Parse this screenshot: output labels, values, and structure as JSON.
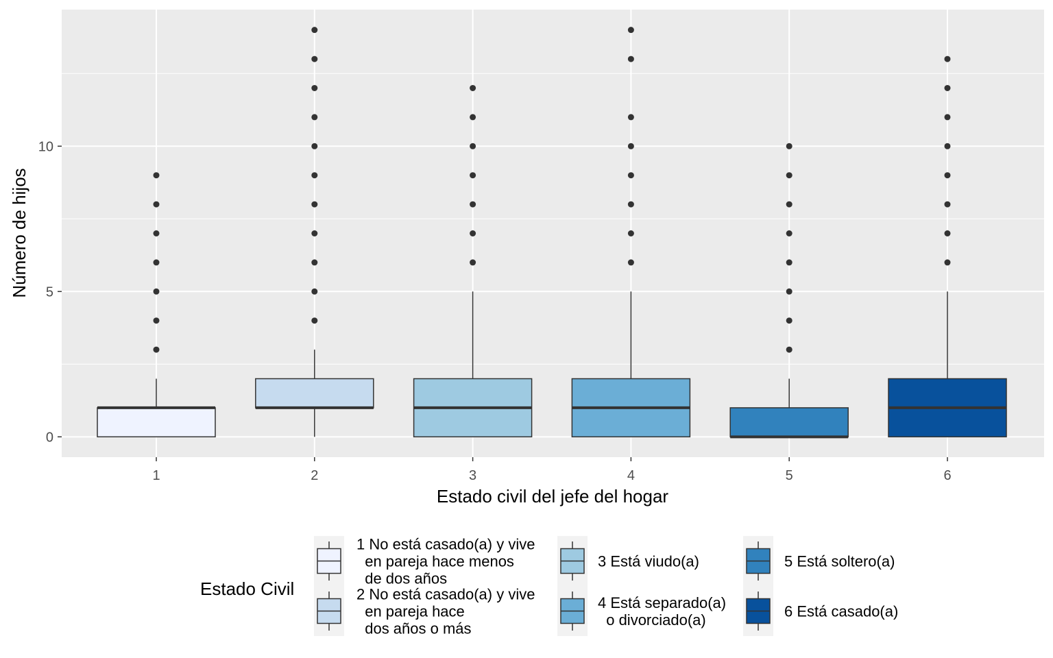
{
  "chart_data": {
    "type": "boxplot",
    "title": "",
    "xlabel": "Estado civil del jefe del hogar",
    "ylabel": "Número de hijos",
    "ylim": [
      -0.7,
      14.7
    ],
    "yticks": [
      0,
      5,
      10
    ],
    "grid": true,
    "legend_position": "bottom",
    "categories": [
      "1",
      "2",
      "3",
      "4",
      "5",
      "6"
    ],
    "boxes": [
      {
        "category": "1",
        "q1": 0,
        "median": 1,
        "q3": 1,
        "whisker_low": 0,
        "whisker_high": 2,
        "outliers": [
          3,
          4,
          5,
          6,
          7,
          8,
          9
        ],
        "color": "#EFF3FF"
      },
      {
        "category": "2",
        "q1": 1,
        "median": 1,
        "q3": 2,
        "whisker_low": 0,
        "whisker_high": 3,
        "outliers": [
          4,
          5,
          6,
          7,
          8,
          9,
          10,
          11,
          12,
          13,
          14
        ],
        "color": "#C6DBEF"
      },
      {
        "category": "3",
        "q1": 0,
        "median": 1,
        "q3": 2,
        "whisker_low": 0,
        "whisker_high": 5,
        "outliers": [
          6,
          7,
          8,
          9,
          10,
          11,
          12
        ],
        "color": "#9ECAE1"
      },
      {
        "category": "4",
        "q1": 0,
        "median": 1,
        "q3": 2,
        "whisker_low": 0,
        "whisker_high": 5,
        "outliers": [
          6,
          7,
          8,
          9,
          10,
          11,
          13,
          14
        ],
        "color": "#6BAED6"
      },
      {
        "category": "5",
        "q1": 0,
        "median": 0,
        "q3": 1,
        "whisker_low": 0,
        "whisker_high": 2,
        "outliers": [
          3,
          4,
          5,
          6,
          7,
          8,
          9,
          10
        ],
        "color": "#3182BD"
      },
      {
        "category": "6",
        "q1": 0,
        "median": 1,
        "q3": 2,
        "whisker_low": 0,
        "whisker_high": 5,
        "outliers": [
          6,
          7,
          8,
          9,
          10,
          11,
          12,
          13
        ],
        "color": "#08519C"
      }
    ],
    "legend": {
      "title": "Estado Civil",
      "entries": [
        {
          "lines": [
            "1 No está casado(a) y vive",
            "  en pareja hace menos",
            "  de dos años"
          ],
          "color": "#EFF3FF"
        },
        {
          "lines": [
            "2 No está casado(a) y vive",
            "  en pareja hace",
            "  dos años o más"
          ],
          "color": "#C6DBEF"
        },
        {
          "lines": [
            "3 Está viudo(a)"
          ],
          "color": "#9ECAE1"
        },
        {
          "lines": [
            "4 Está separado(a)",
            "  o divorciado(a)"
          ],
          "color": "#6BAED6"
        },
        {
          "lines": [
            "5 Está soltero(a)"
          ],
          "color": "#3182BD"
        },
        {
          "lines": [
            "6 Está casado(a)"
          ],
          "color": "#08519C"
        }
      ]
    }
  }
}
